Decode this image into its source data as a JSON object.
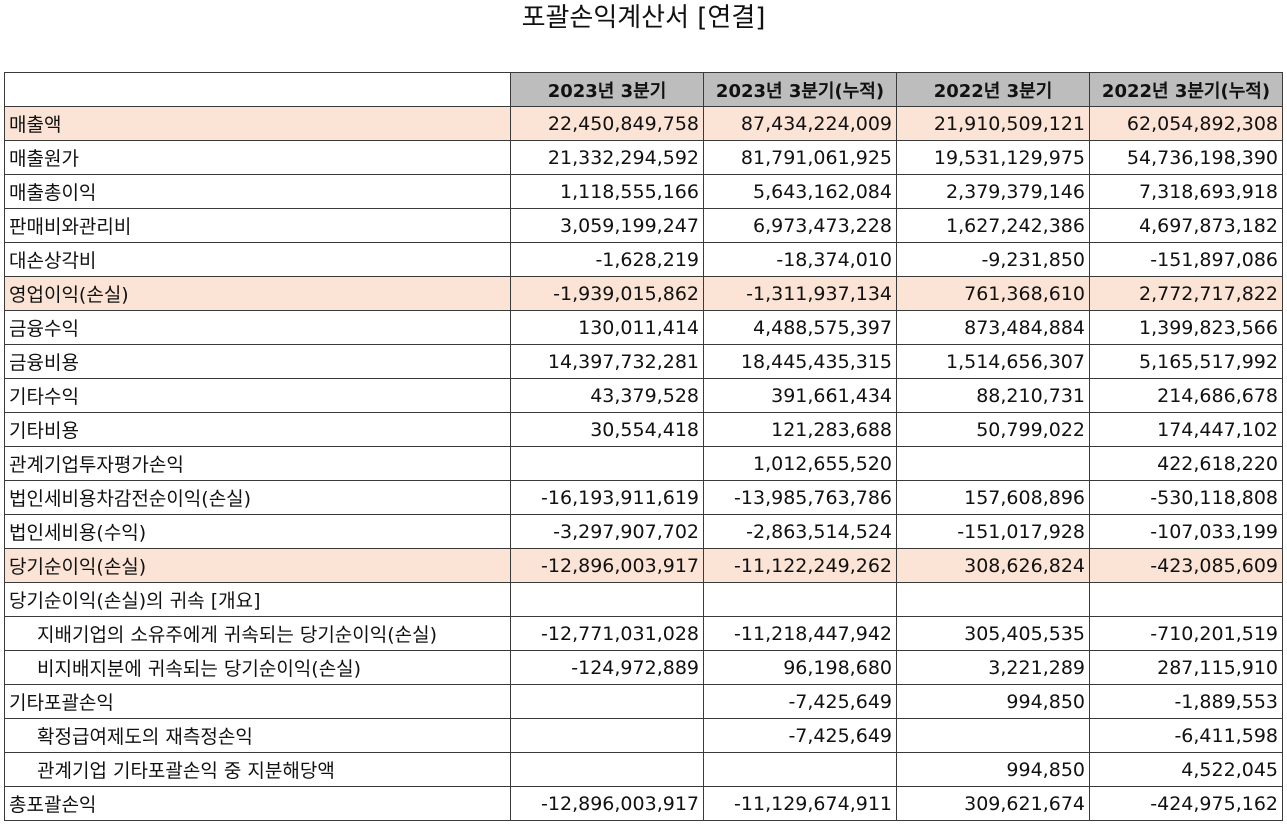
{
  "title": "포괄손익계산서 [연결]",
  "columns": [
    "2023년 3분기",
    "2023년 3분기(누적)",
    "2022년 3분기",
    "2022년 3분기(누적)"
  ],
  "rows": [
    {
      "label": "매출액",
      "values": [
        "22,450,849,758",
        "87,434,224,009",
        "21,910,509,121",
        "62,054,892,308"
      ],
      "highlight": true,
      "indent": false
    },
    {
      "label": "매출원가",
      "values": [
        "21,332,294,592",
        "81,791,061,925",
        "19,531,129,975",
        "54,736,198,390"
      ],
      "highlight": false,
      "indent": false
    },
    {
      "label": "매출총이익",
      "values": [
        "1,118,555,166",
        "5,643,162,084",
        "2,379,379,146",
        "7,318,693,918"
      ],
      "highlight": false,
      "indent": false
    },
    {
      "label": "판매비와관리비",
      "values": [
        "3,059,199,247",
        "6,973,473,228",
        "1,627,242,386",
        "4,697,873,182"
      ],
      "highlight": false,
      "indent": false
    },
    {
      "label": "대손상각비",
      "values": [
        "-1,628,219",
        "-18,374,010",
        "-9,231,850",
        "-151,897,086"
      ],
      "highlight": false,
      "indent": false
    },
    {
      "label": "영업이익(손실)",
      "values": [
        "-1,939,015,862",
        "-1,311,937,134",
        "761,368,610",
        "2,772,717,822"
      ],
      "highlight": true,
      "indent": false
    },
    {
      "label": "금융수익",
      "values": [
        "130,011,414",
        "4,488,575,397",
        "873,484,884",
        "1,399,823,566"
      ],
      "highlight": false,
      "indent": false
    },
    {
      "label": "금융비용",
      "values": [
        "14,397,732,281",
        "18,445,435,315",
        "1,514,656,307",
        "5,165,517,992"
      ],
      "highlight": false,
      "indent": false
    },
    {
      "label": "기타수익",
      "values": [
        "43,379,528",
        "391,661,434",
        "88,210,731",
        "214,686,678"
      ],
      "highlight": false,
      "indent": false
    },
    {
      "label": "기타비용",
      "values": [
        "30,554,418",
        "121,283,688",
        "50,799,022",
        "174,447,102"
      ],
      "highlight": false,
      "indent": false
    },
    {
      "label": "관계기업투자평가손익",
      "values": [
        "",
        "1,012,655,520",
        "",
        "422,618,220"
      ],
      "highlight": false,
      "indent": false
    },
    {
      "label": "법인세비용차감전순이익(손실)",
      "values": [
        "-16,193,911,619",
        "-13,985,763,786",
        "157,608,896",
        "-530,118,808"
      ],
      "highlight": false,
      "indent": false
    },
    {
      "label": "법인세비용(수익)",
      "values": [
        "-3,297,907,702",
        "-2,863,514,524",
        "-151,017,928",
        "-107,033,199"
      ],
      "highlight": false,
      "indent": false
    },
    {
      "label": "당기순이익(손실)",
      "values": [
        "-12,896,003,917",
        "-11,122,249,262",
        "308,626,824",
        "-423,085,609"
      ],
      "highlight": true,
      "indent": false
    },
    {
      "label": "당기순이익(손실)의 귀속 [개요]",
      "values": [
        "",
        "",
        "",
        ""
      ],
      "highlight": false,
      "indent": false
    },
    {
      "label": "지배기업의 소유주에게 귀속되는 당기순이익(손실)",
      "values": [
        "-12,771,031,028",
        "-11,218,447,942",
        "305,405,535",
        "-710,201,519"
      ],
      "highlight": false,
      "indent": true
    },
    {
      "label": "비지배지분에 귀속되는 당기순이익(손실)",
      "values": [
        "-124,972,889",
        "96,198,680",
        "3,221,289",
        "287,115,910"
      ],
      "highlight": false,
      "indent": true
    },
    {
      "label": "기타포괄손익",
      "values": [
        "",
        "-7,425,649",
        "994,850",
        "-1,889,553"
      ],
      "highlight": false,
      "indent": false
    },
    {
      "label": "확정급여제도의 재측정손익",
      "values": [
        "",
        "-7,425,649",
        "",
        "-6,411,598"
      ],
      "highlight": false,
      "indent": true
    },
    {
      "label": "관계기업 기타포괄손익 중 지분해당액",
      "values": [
        "",
        "",
        "994,850",
        "4,522,045"
      ],
      "highlight": false,
      "indent": true
    },
    {
      "label": "총포괄손익",
      "values": [
        "-12,896,003,917",
        "-11,129,674,911",
        "309,621,674",
        "-424,975,162"
      ],
      "highlight": false,
      "indent": false
    }
  ]
}
